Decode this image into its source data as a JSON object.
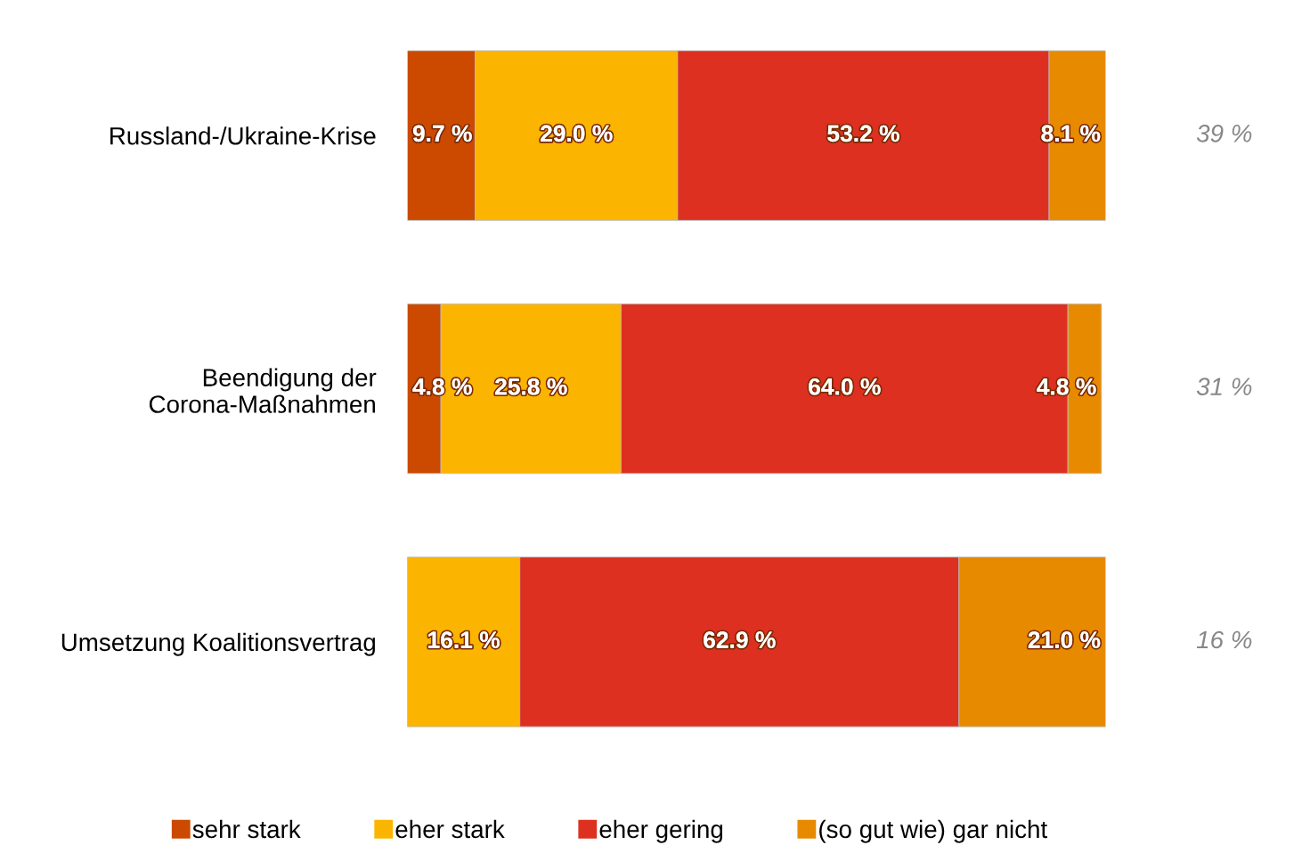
{
  "chart_data": {
    "type": "bar",
    "orientation": "horizontal",
    "stacked": true,
    "legend": "bottom",
    "xlim": [
      0,
      100
    ],
    "categories": [
      "Russland-/Ukraine-Krise",
      "Beendigung der\nCorona-Maßnahmen",
      "Umsetzung Koalitionsvertrag"
    ],
    "series": [
      {
        "name": "sehr stark",
        "color": "#cc4a00",
        "values": [
          9.7,
          4.8,
          0
        ],
        "value_labels": [
          "9.7 %",
          "4.8 %",
          null
        ]
      },
      {
        "name": "eher stark",
        "color": "#fbb400",
        "values": [
          29.0,
          25.8,
          16.1
        ],
        "value_labels": [
          "29.0 %",
          "25.8 %",
          "16.1 %"
        ]
      },
      {
        "name": "eher gering",
        "color": "#dd3020",
        "values": [
          53.2,
          64.0,
          62.9
        ],
        "value_labels": [
          "53.2 %",
          "64.0 %",
          "62.9 %"
        ]
      },
      {
        "name": "(so gut wie) gar nicht",
        "color": "#e88a00",
        "values": [
          8.1,
          4.8,
          21.0
        ],
        "value_labels": [
          "8.1 %",
          "4.8 %",
          "21.0 %"
        ]
      }
    ],
    "annotations": [
      "39 %",
      "31 %",
      "16 %"
    ]
  }
}
